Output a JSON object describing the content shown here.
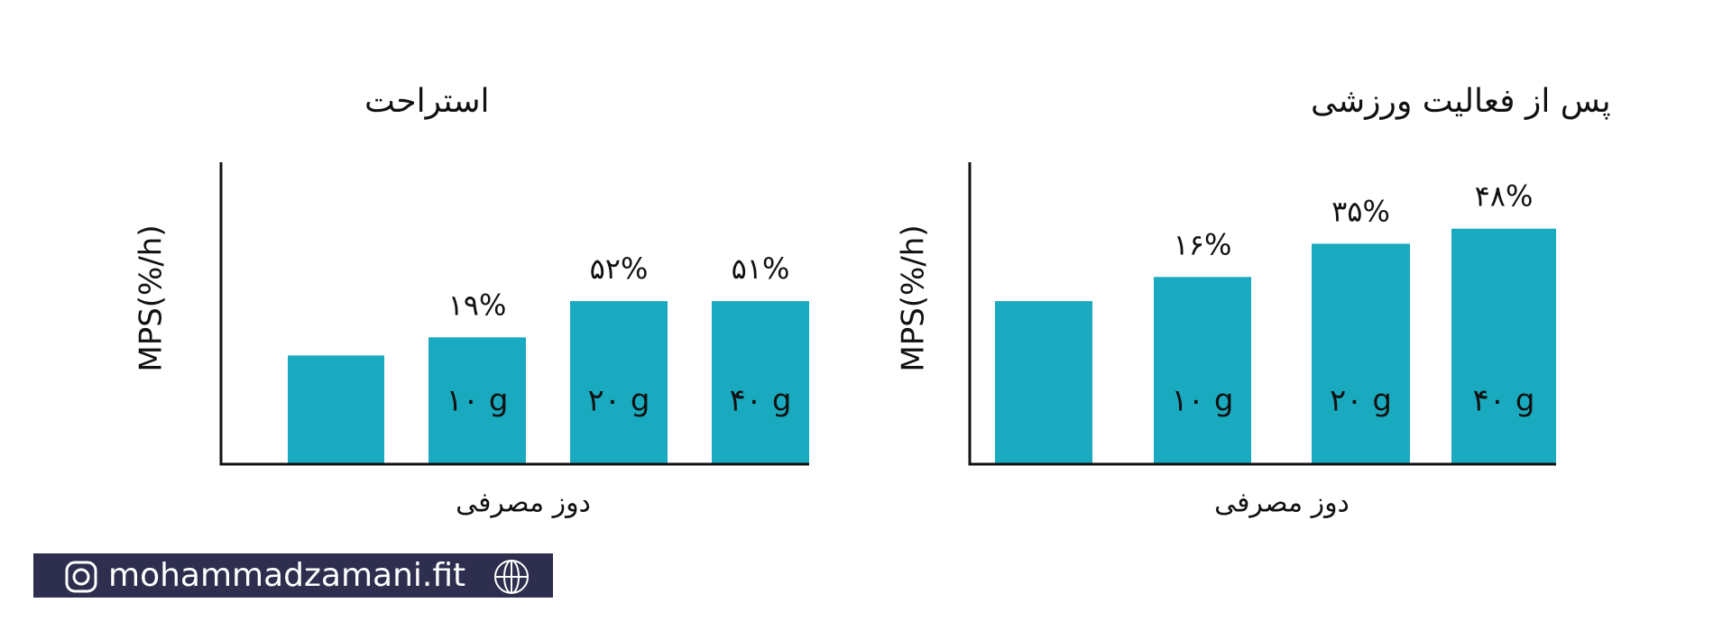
{
  "chart_data": [
    {
      "type": "bar",
      "title": "استراحت",
      "y_label": "MPS(%/h)",
      "x_label": "دوز مصرفی",
      "categories": [
        null,
        "۱۰ g",
        "۲۰ g",
        "۴۰ g"
      ],
      "values": [
        36,
        42,
        54,
        54
      ],
      "bar_labels": [
        null,
        "۱۹%",
        "۵۲%",
        "۵۱%"
      ],
      "color": "#1aaabf",
      "ylim": [
        0,
        100
      ]
    },
    {
      "type": "bar",
      "title": "پس از فعالیت ورزشی",
      "y_label": "MPS(%/h)",
      "x_label": "دوز مصرفی",
      "categories": [
        null,
        "۱۰ g",
        "۲۰ g",
        "۴۰ g"
      ],
      "values": [
        54,
        62,
        73,
        78
      ],
      "bar_labels": [
        null,
        "۱۶%",
        "۳۵%",
        "۴۸%"
      ],
      "color": "#1aaabf",
      "ylim": [
        0,
        100
      ]
    }
  ],
  "footer": {
    "handle": "mohammadzamani.fit"
  }
}
